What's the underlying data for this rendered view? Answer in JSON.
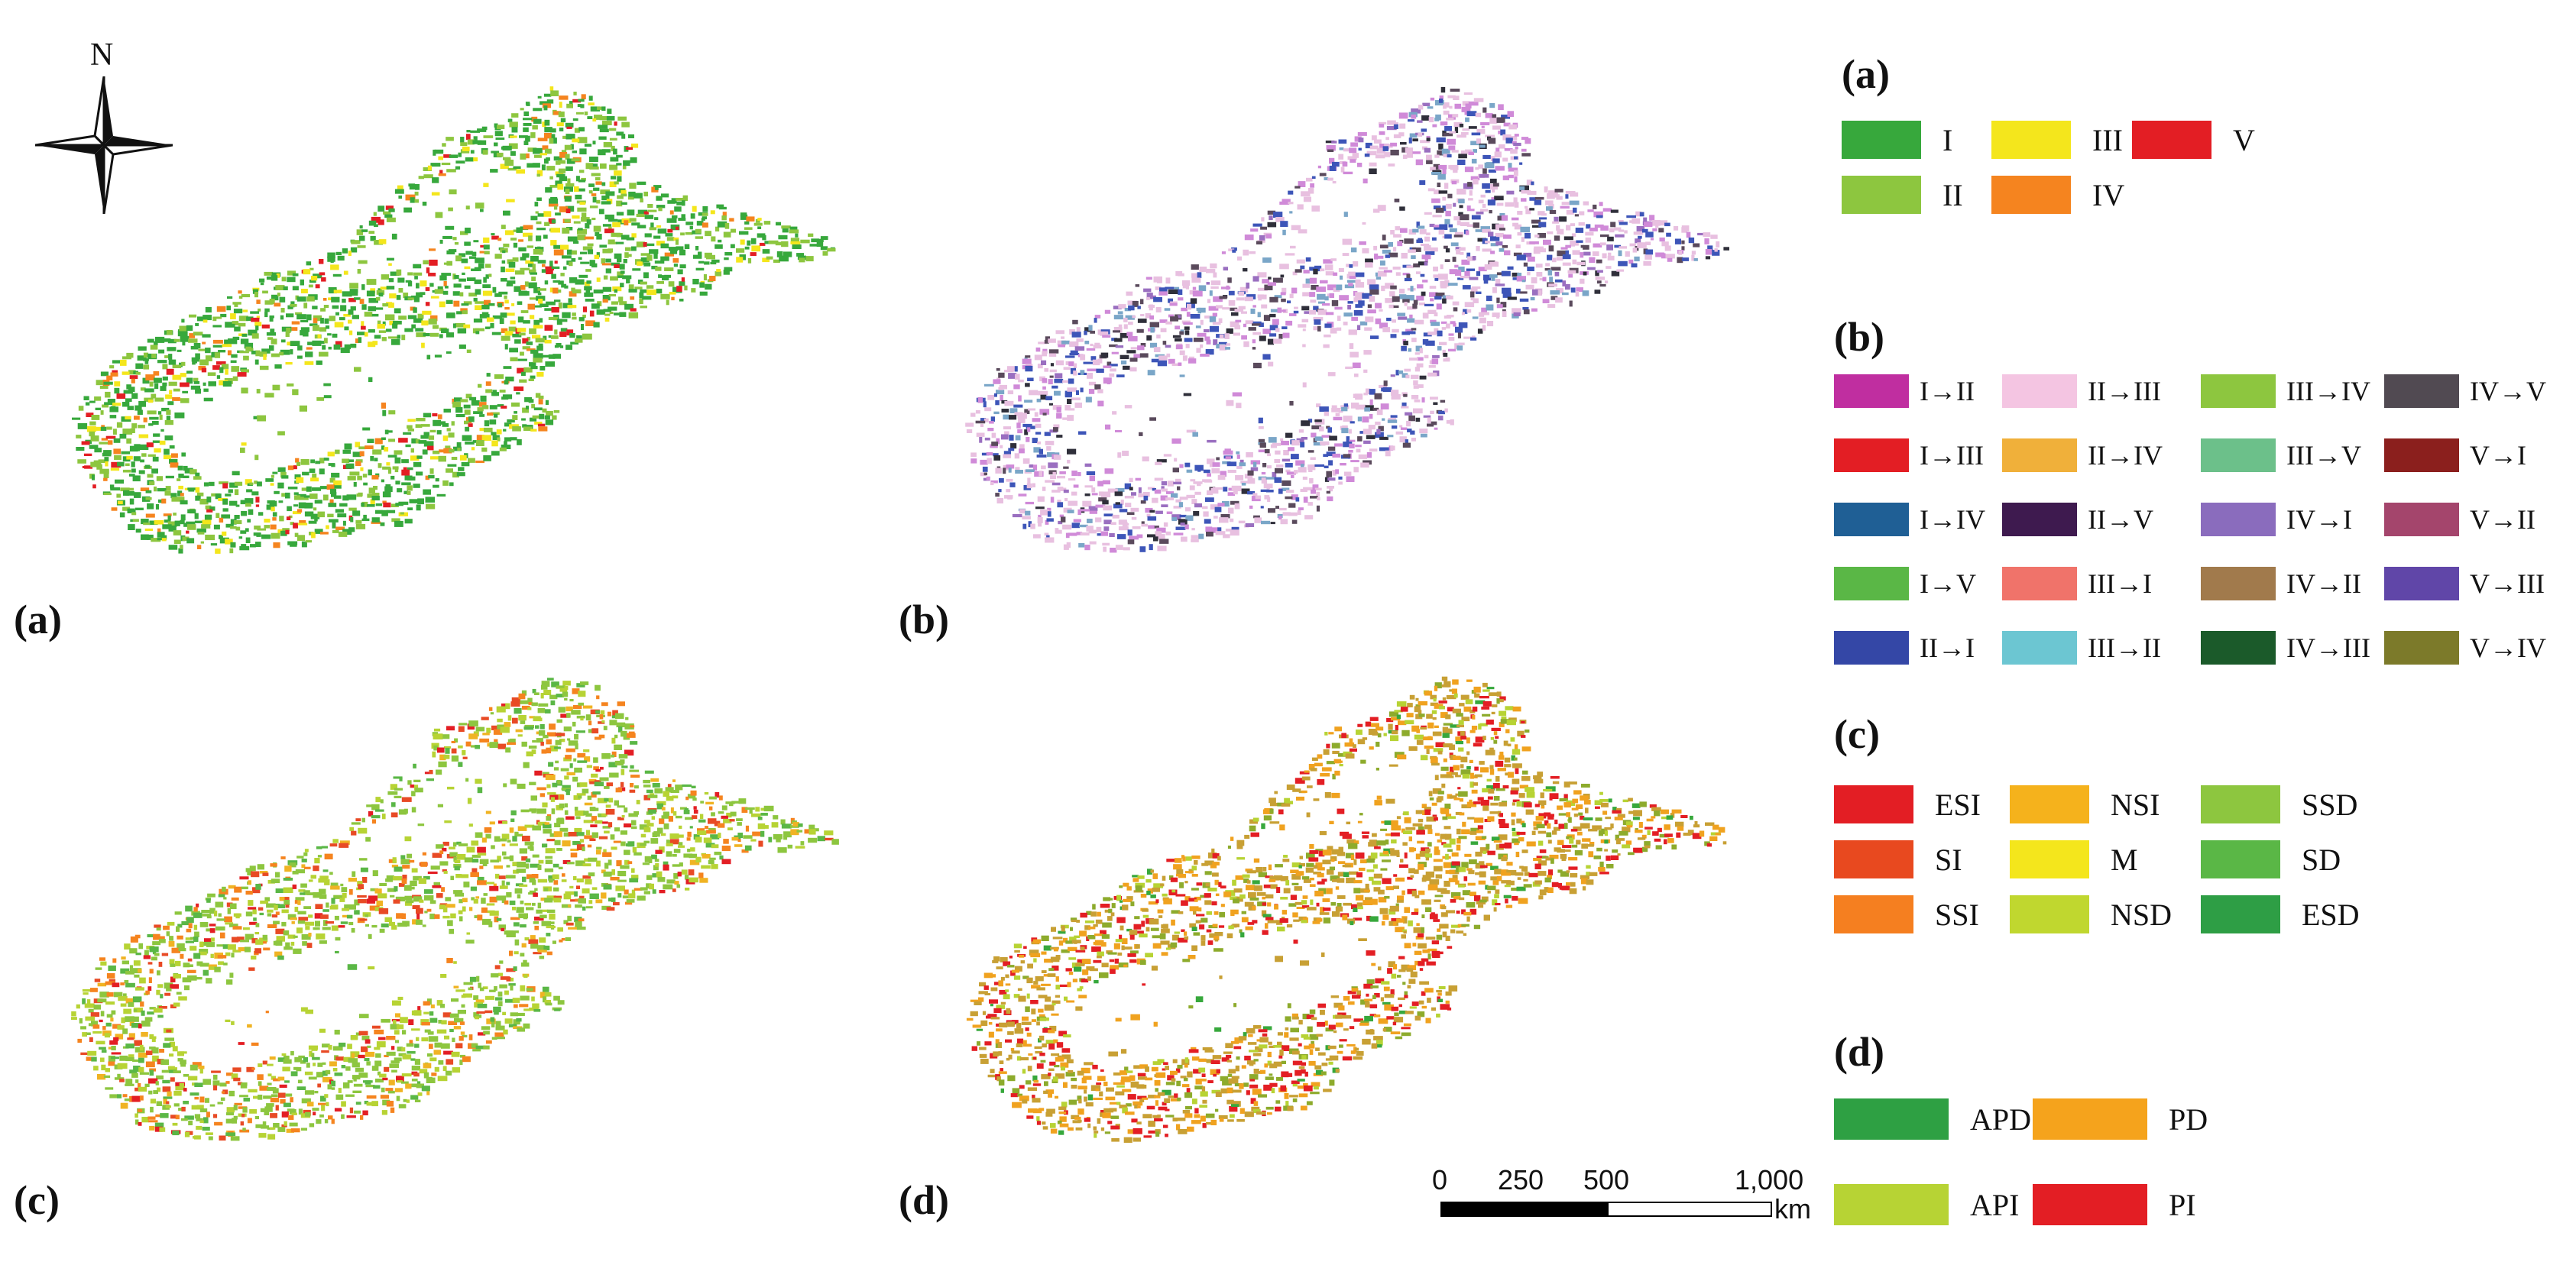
{
  "north_label": "N",
  "north_arrow_icon": "compass-north-arrow-icon",
  "panels": [
    {
      "id": "a",
      "label": "(a)",
      "palette": [
        "#37a83c",
        "#8dc63f",
        "#f4e61c",
        "#f5841f",
        "#e31e24"
      ],
      "weights": [
        50,
        30,
        10,
        6,
        4
      ]
    },
    {
      "id": "b",
      "label": "(b)",
      "palette": [
        "#e8c0e0",
        "#d08ad8",
        "#3d55b8",
        "#5a4a5c",
        "#7aa6c8",
        "#2f2f3a",
        "#9a6fc0"
      ],
      "weights": [
        40,
        18,
        14,
        10,
        8,
        5,
        5
      ]
    },
    {
      "id": "c",
      "label": "(c)",
      "palette": [
        "#8dc63f",
        "#b7d334",
        "#5ab746",
        "#f5841f",
        "#e84a25",
        "#f0b323",
        "#e31e24"
      ],
      "weights": [
        40,
        22,
        10,
        10,
        8,
        6,
        4
      ]
    },
    {
      "id": "d",
      "label": "(d)",
      "palette": [
        "#c8a034",
        "#f0a21f",
        "#e31e24",
        "#8dab2c",
        "#b7d334",
        "#37a83c"
      ],
      "weights": [
        34,
        24,
        18,
        12,
        8,
        4
      ]
    }
  ],
  "legend_a": {
    "title": "(a)",
    "items": [
      {
        "label": "I",
        "color": "#37a83c"
      },
      {
        "label": "III",
        "color": "#f4e61c"
      },
      {
        "label": "V",
        "color": "#e31e24"
      },
      {
        "label": "II",
        "color": "#8dc63f"
      },
      {
        "label": "IV",
        "color": "#f5841f"
      }
    ]
  },
  "legend_b": {
    "title": "(b)",
    "items": [
      {
        "label": "I→II",
        "color": "#c02ea0"
      },
      {
        "label": "II→III",
        "color": "#f4c5e2"
      },
      {
        "label": "III→IV",
        "color": "#8dc63f"
      },
      {
        "label": "IV→V",
        "color": "#514a52"
      },
      {
        "label": "I→III",
        "color": "#e31e24"
      },
      {
        "label": "II→IV",
        "color": "#f0b03a"
      },
      {
        "label": "III→V",
        "color": "#6cc08a"
      },
      {
        "label": "V→I",
        "color": "#8b1f1d"
      },
      {
        "label": "I→IV",
        "color": "#1f5f95"
      },
      {
        "label": "II→V",
        "color": "#3e1a4f"
      },
      {
        "label": "IV→I",
        "color": "#8a6cbd"
      },
      {
        "label": "V→II",
        "color": "#a4456c"
      },
      {
        "label": "I→V",
        "color": "#5ab746"
      },
      {
        "label": "III→I",
        "color": "#f0736a"
      },
      {
        "label": "IV→II",
        "color": "#a17a4c"
      },
      {
        "label": "V→III",
        "color": "#6046a8"
      },
      {
        "label": "II→I",
        "color": "#3447a6"
      },
      {
        "label": "III→II",
        "color": "#6cc6d2"
      },
      {
        "label": "IV→III",
        "color": "#1b5a2a"
      },
      {
        "label": "V→IV",
        "color": "#7c7a2a"
      }
    ]
  },
  "legend_c": {
    "title": "(c)",
    "items": [
      {
        "label": "ESI",
        "color": "#e31e24"
      },
      {
        "label": "NSI",
        "color": "#f5b21c"
      },
      {
        "label": "SSD",
        "color": "#8dc63f"
      },
      {
        "label": "SI",
        "color": "#e8491f"
      },
      {
        "label": "M",
        "color": "#f4e61c"
      },
      {
        "label": "SD",
        "color": "#5ab746"
      },
      {
        "label": "SSI",
        "color": "#f57f20"
      },
      {
        "label": "NSD",
        "color": "#c0d72f"
      },
      {
        "label": "ESD",
        "color": "#2e9e45"
      }
    ]
  },
  "legend_d": {
    "title": "(d)",
    "items": [
      {
        "label": "APD",
        "color": "#2ea043"
      },
      {
        "label": "PD",
        "color": "#f5a31c"
      },
      {
        "label": "API",
        "color": "#b7d334"
      },
      {
        "label": "PI",
        "color": "#e31e24"
      }
    ]
  },
  "scale_bar": {
    "ticks": [
      "0",
      "250",
      "500",
      "1,000"
    ],
    "unit": "km"
  }
}
